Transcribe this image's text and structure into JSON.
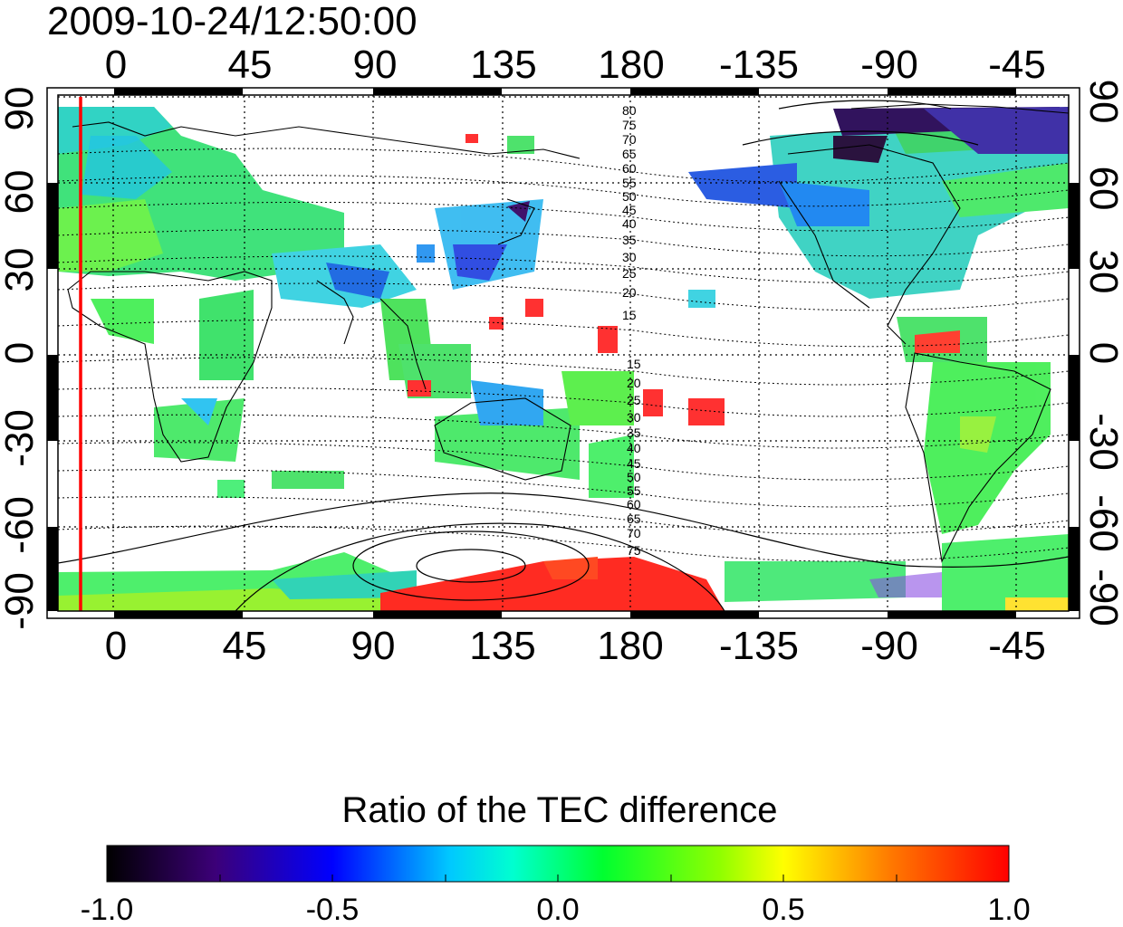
{
  "title": "2009-10-24/12:50:00",
  "top_lon_labels": [
    "0",
    "45",
    "90",
    "135",
    "180",
    "-135",
    "-90",
    "-45"
  ],
  "bottom_lon_labels": [
    "0",
    "45",
    "90",
    "135",
    "180",
    "-135",
    "-90",
    "-45"
  ],
  "left_lat_labels": [
    "90",
    "60",
    "30",
    "0",
    "-30",
    "-60",
    "-90"
  ],
  "right_lat_labels": [
    "90",
    "60",
    "30",
    "0",
    "-30",
    "-60",
    "-90"
  ],
  "contour_labels_north": [
    "80",
    "75",
    "70",
    "65",
    "60",
    "55",
    "50",
    "45",
    "40",
    "35",
    "30",
    "25",
    "20",
    "15"
  ],
  "contour_labels_south": [
    "15",
    "20",
    "25",
    "30",
    "35",
    "40",
    "45",
    "50",
    "55",
    "60",
    "65",
    "70",
    "75"
  ],
  "colorbar": {
    "title": "Ratio of the TEC difference",
    "tick_labels": [
      "-1.0",
      "-0.5",
      "0.0",
      "0.5",
      "1.0"
    ],
    "min": -1.0,
    "max": 1.0
  },
  "colors": {
    "frame": "#000000",
    "terminator_line": "#ff0000",
    "grid": "#000000"
  },
  "chart_data": {
    "type": "heatmap",
    "title": "2009-10-24/12:50:00",
    "value_label": "Ratio of the TEC difference",
    "x_range_deg": [
      -20,
      340
    ],
    "y_range_deg": [
      -90,
      90
    ],
    "x_ticks": [
      "0",
      "45",
      "90",
      "135",
      "180",
      "-135",
      "-90",
      "-45"
    ],
    "y_ticks": [
      "90",
      "60",
      "30",
      "0",
      "-30",
      "-60",
      "-90"
    ],
    "colorscale_range": [
      -1.0,
      1.0
    ],
    "grid": true
  }
}
